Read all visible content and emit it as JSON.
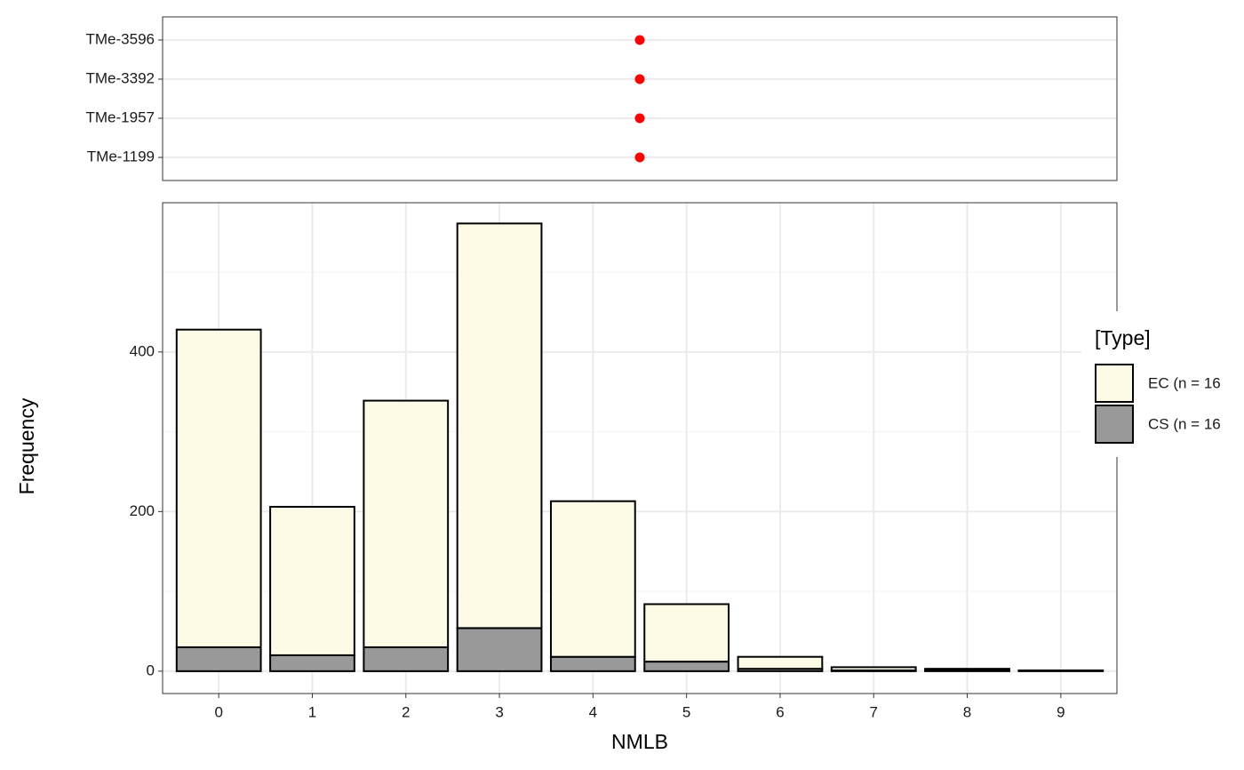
{
  "chart_data": [
    {
      "type": "dot",
      "categories": [
        "TMe-3596",
        "TMe-3392",
        "TMe-1957",
        "TMe-1199"
      ],
      "values": [
        4.5,
        4.5,
        4.5,
        4.5
      ],
      "color": "#ff0000",
      "xlim": [
        -0.6,
        9.6
      ],
      "grid": true
    },
    {
      "type": "bar",
      "stacked": true,
      "xlabel": "NMLB",
      "ylabel": "Frequency",
      "x": [
        0,
        1,
        2,
        3,
        4,
        5,
        6,
        7,
        8,
        9
      ],
      "xlim": [
        -0.6,
        9.6
      ],
      "xticks": [
        0,
        1,
        2,
        3,
        4,
        5,
        6,
        7,
        8,
        9
      ],
      "ylim": [
        -28,
        587
      ],
      "yticks": [
        0,
        200,
        400
      ],
      "minor_yticks": [
        100,
        300,
        500
      ],
      "grid": true,
      "legend_title": "[Type]",
      "legend_position": "right",
      "series": [
        {
          "name": "EC (n = 16",
          "color": "#fdfae6",
          "values": [
            398,
            186,
            309,
            507,
            195,
            72,
            15,
            4,
            2,
            1
          ]
        },
        {
          "name": "CS (n = 16",
          "color": "#999999",
          "values": [
            30,
            20,
            30,
            54,
            18,
            12,
            3,
            1,
            1,
            0
          ]
        }
      ]
    }
  ]
}
